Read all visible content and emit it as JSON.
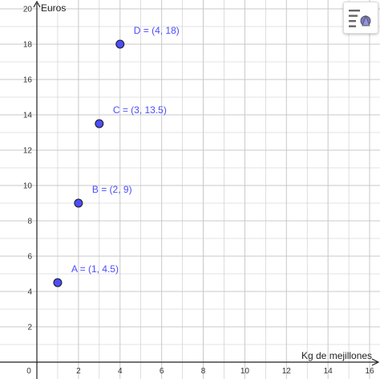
{
  "axes": {
    "y_label": "Euros",
    "x_label": "Kg de mejillones"
  },
  "chart_data": {
    "type": "scatter",
    "xlim": [
      0,
      16.5
    ],
    "ylim": [
      0,
      20.5
    ],
    "grid": true,
    "x_ticks": [
      "0",
      "2",
      "4",
      "6",
      "8",
      "10",
      "12",
      "14",
      "16"
    ],
    "y_ticks": [
      "2",
      "4",
      "6",
      "8",
      "10",
      "12",
      "14",
      "16",
      "18",
      "20"
    ],
    "points": [
      {
        "name": "A",
        "x": 1,
        "y": 4.5,
        "label": "A = (1, 4.5)"
      },
      {
        "name": "B",
        "x": 2,
        "y": 9,
        "label": "B = (2, 9)"
      },
      {
        "name": "C",
        "x": 3,
        "y": 13.5,
        "label": "C = (3, 13.5)"
      },
      {
        "name": "D",
        "x": 4,
        "y": 18,
        "label": "D = (4, 18)"
      }
    ],
    "point_color": "#4d4dff",
    "point_stroke": "#1a1a1a",
    "grid_color": "#c8c8c8"
  },
  "toolbar": {
    "icon": "style-bar-toggle-icon"
  }
}
